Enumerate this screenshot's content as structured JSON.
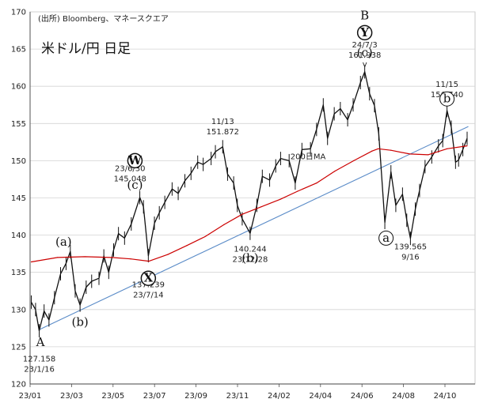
{
  "chart_data": {
    "type": "line",
    "title": "米ドル/円 日足",
    "source": "(出所) Bloomberg、マネースクエア",
    "x_ticks": [
      "23/01",
      "23/03",
      "23/05",
      "23/07",
      "23/09",
      "23/11",
      "24/02",
      "24/04",
      "24/06",
      "24/08",
      "24/10"
    ],
    "y_ticks": [
      120,
      125,
      130,
      135,
      140,
      145,
      150,
      155,
      160,
      165,
      170
    ],
    "ylim": [
      120,
      170
    ],
    "grid": "horizontal",
    "series": [
      {
        "name": "",
        "color": "#111111",
        "points": [
          [
            "2023-01-03",
            131.0
          ],
          [
            "2023-01-10",
            130.0
          ],
          [
            "2023-01-16",
            127.158
          ],
          [
            "2023-01-24",
            129.8
          ],
          [
            "2023-02-01",
            128.6
          ],
          [
            "2023-02-10",
            131.6
          ],
          [
            "2023-02-20",
            134.8
          ],
          [
            "2023-03-01",
            136.2
          ],
          [
            "2023-03-08",
            137.8
          ],
          [
            "2023-03-16",
            132.5
          ],
          [
            "2023-03-24",
            130.6
          ],
          [
            "2023-04-03",
            133.0
          ],
          [
            "2023-04-12",
            133.8
          ],
          [
            "2023-04-24",
            134.2
          ],
          [
            "2023-05-02",
            137.2
          ],
          [
            "2023-05-10",
            135.0
          ],
          [
            "2023-05-18",
            138.0
          ],
          [
            "2023-05-26",
            140.2
          ],
          [
            "2023-06-05",
            139.6
          ],
          [
            "2023-06-16",
            141.5
          ],
          [
            "2023-06-30",
            145.048
          ],
          [
            "2023-07-06",
            143.8
          ],
          [
            "2023-07-14",
            137.239
          ],
          [
            "2023-07-24",
            141.6
          ],
          [
            "2023-08-01",
            143.0
          ],
          [
            "2023-08-10",
            144.4
          ],
          [
            "2023-08-22",
            146.2
          ],
          [
            "2023-09-01",
            145.6
          ],
          [
            "2023-09-12",
            147.3
          ],
          [
            "2023-09-22",
            148.3
          ],
          [
            "2023-10-03",
            149.8
          ],
          [
            "2023-10-12",
            149.5
          ],
          [
            "2023-10-25",
            150.3
          ],
          [
            "2023-11-01",
            151.2
          ],
          [
            "2023-11-13",
            151.872
          ],
          [
            "2023-11-21",
            148.2
          ],
          [
            "2023-12-01",
            147.0
          ],
          [
            "2023-12-07",
            144.0
          ],
          [
            "2023-12-15",
            142.2
          ],
          [
            "2023-12-28",
            140.244
          ],
          [
            "2024-01-08",
            144.0
          ],
          [
            "2024-01-17",
            147.9
          ],
          [
            "2024-01-29",
            147.4
          ],
          [
            "2024-02-08",
            149.3
          ],
          [
            "2024-02-16",
            150.3
          ],
          [
            "2024-03-01",
            150.0
          ],
          [
            "2024-03-11",
            147.0
          ],
          [
            "2024-03-22",
            151.5
          ],
          [
            "2024-04-05",
            151.6
          ],
          [
            "2024-04-15",
            154.2
          ],
          [
            "2024-04-26",
            157.5
          ],
          [
            "2024-05-03",
            153.0
          ],
          [
            "2024-05-14",
            156.3
          ],
          [
            "2024-05-24",
            157.0
          ],
          [
            "2024-06-05",
            155.5
          ],
          [
            "2024-06-14",
            157.5
          ],
          [
            "2024-06-26",
            160.5
          ],
          [
            "2024-07-03",
            161.938
          ],
          [
            "2024-07-11",
            159.0
          ],
          [
            "2024-07-19",
            157.4
          ],
          [
            "2024-07-26",
            153.6
          ],
          [
            "2024-08-05",
            141.7
          ],
          [
            "2024-08-15",
            148.5
          ],
          [
            "2024-08-23",
            144.0
          ],
          [
            "2024-09-03",
            145.5
          ],
          [
            "2024-09-10",
            142.0
          ],
          [
            "2024-09-16",
            139.565
          ],
          [
            "2024-09-24",
            143.5
          ],
          [
            "2024-10-01",
            146.0
          ],
          [
            "2024-10-10",
            149.2
          ],
          [
            "2024-10-21",
            150.5
          ],
          [
            "2024-11-01",
            152.0
          ],
          [
            "2024-11-08",
            152.7
          ],
          [
            "2024-11-15",
            156.74
          ],
          [
            "2024-11-22",
            154.5
          ],
          [
            "2024-11-29",
            149.8
          ],
          [
            "2024-12-04",
            150.1
          ],
          [
            "2024-12-11",
            151.5
          ],
          [
            "2024-12-18",
            153.0
          ]
        ]
      },
      {
        "name": "200日MA",
        "color": "#cc0000",
        "points": [
          [
            "2023-01-03",
            136.4
          ],
          [
            "2023-02-15",
            137.0
          ],
          [
            "2023-04-01",
            137.1
          ],
          [
            "2023-05-15",
            137.0
          ],
          [
            "2023-06-15",
            136.8
          ],
          [
            "2023-07-15",
            136.5
          ],
          [
            "2023-08-15",
            137.4
          ],
          [
            "2023-09-15",
            138.6
          ],
          [
            "2023-10-15",
            139.8
          ],
          [
            "2023-11-15",
            141.4
          ],
          [
            "2023-12-15",
            142.8
          ],
          [
            "2024-01-15",
            143.8
          ],
          [
            "2024-02-15",
            144.8
          ],
          [
            "2024-03-15",
            145.9
          ],
          [
            "2024-04-15",
            147.0
          ],
          [
            "2024-05-15",
            148.6
          ],
          [
            "2024-06-15",
            150.0
          ],
          [
            "2024-07-15",
            151.3
          ],
          [
            "2024-07-25",
            151.6
          ],
          [
            "2024-08-15",
            151.4
          ],
          [
            "2024-09-15",
            150.9
          ],
          [
            "2024-10-15",
            150.8
          ],
          [
            "2024-11-15",
            151.6
          ],
          [
            "2024-12-18",
            152.0
          ]
        ]
      }
    ],
    "trendline": {
      "color": "#5b8cc8",
      "from": [
        "2023-01-16",
        127.3
      ],
      "to": [
        "2024-12-20",
        154.6
      ]
    },
    "annotations": [
      {
        "lines": [
          "11/13",
          "151.872"
        ],
        "date": "2023-11-13",
        "y": 154.9
      },
      {
        "lines": [
          "24/7/3",
          "161.938"
        ],
        "date": "2024-07-03",
        "y": 165.2
      },
      {
        "lines": [
          "11/15",
          "156.740"
        ],
        "date": "2024-11-15",
        "y": 159.9
      },
      {
        "lines": [
          "23/6/30",
          "145.048"
        ],
        "date": "2023-06-14",
        "y": 148.6
      },
      {
        "lines": [
          "137.239",
          "23/7/14"
        ],
        "date": "2023-07-14",
        "y": 133.0
      },
      {
        "lines": [
          "140.244",
          "23/12/28"
        ],
        "date": "2023-12-28",
        "y": 137.8
      },
      {
        "lines": [
          "139.565",
          "9/16"
        ],
        "date": "2024-09-16",
        "y": 138.1
      },
      {
        "lines": [
          "127.158",
          "23/1/16"
        ],
        "date": "2023-01-16",
        "y": 123.0
      }
    ],
    "wave_labels": [
      {
        "text": "(a)",
        "date": "2023-02-25",
        "y": 138.6
      },
      {
        "text": "(b)",
        "date": "2023-03-24",
        "y": 127.8
      },
      {
        "text": "(c)",
        "date": "2023-06-22",
        "y": 146.2
      },
      {
        "text": "(b)",
        "date": "2023-12-28",
        "y": 136.4
      },
      {
        "text": "(c)",
        "date": "2024-07-03",
        "y": 164.0
      },
      {
        "text": "A",
        "date": "2023-01-18",
        "y": 125.1
      },
      {
        "text": "B",
        "date": "2024-07-03",
        "y": 169.0
      }
    ],
    "circle_labels": [
      {
        "text": "W",
        "date": "2023-06-22",
        "y": 150.0,
        "bold": true
      },
      {
        "text": "X",
        "date": "2023-07-14",
        "y": 134.2,
        "bold": true
      },
      {
        "text": "Y",
        "date": "2024-07-03",
        "y": 167.2,
        "bold": true
      },
      {
        "text": "a",
        "date": "2024-08-07",
        "y": 139.6,
        "bold": false
      },
      {
        "text": "b",
        "date": "2024-11-15",
        "y": 158.3,
        "bold": false
      }
    ],
    "small_marks": [
      {
        "text": "v",
        "date": "2024-07-03",
        "y": 162.6
      }
    ],
    "ma_label": {
      "text": "200日MA",
      "date": "2024-04-01",
      "y": 150.2
    }
  }
}
